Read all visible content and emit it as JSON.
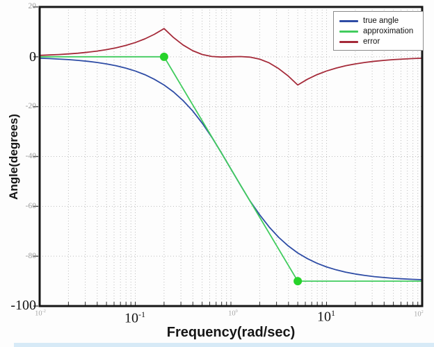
{
  "figure": {
    "background": "#fdfdfd",
    "bottom_strip_color": "#d7eaf7"
  },
  "yaxis": {
    "title": "Angle(degrees)",
    "ticks": [
      {
        "label": "20",
        "value": 20,
        "emphasis": false
      },
      {
        "label": "0",
        "value": 0,
        "emphasis": true
      },
      {
        "label": "-20",
        "value": -20,
        "emphasis": false
      },
      {
        "label": "-40",
        "value": -40,
        "emphasis": false
      },
      {
        "label": "-60",
        "value": -60,
        "emphasis": false
      },
      {
        "label": "-80",
        "value": -80,
        "emphasis": false
      },
      {
        "label": "-100",
        "value": -100,
        "emphasis": true
      }
    ]
  },
  "xaxis": {
    "title": "Frequency(rad/sec)",
    "ticks": [
      {
        "base": "10",
        "exp": "-2",
        "value": 0.01,
        "emphasis": false
      },
      {
        "base": "10",
        "exp": "-1",
        "value": 0.1,
        "emphasis": true
      },
      {
        "base": "10",
        "exp": "0",
        "value": 1,
        "emphasis": false
      },
      {
        "base": "10",
        "exp": "1",
        "value": 10,
        "emphasis": true
      },
      {
        "base": "10",
        "exp": "2",
        "value": 100,
        "emphasis": false
      }
    ]
  },
  "legend": {
    "position": "upper right",
    "items": [
      {
        "label": "true angle",
        "color": "#2e4ca5"
      },
      {
        "label": "approximation",
        "color": "#41cc5e"
      },
      {
        "label": "error",
        "color": "#a52a39"
      }
    ]
  },
  "chart_data": {
    "type": "line",
    "title": "",
    "xlabel": "Frequency(rad/sec)",
    "ylabel": "Angle(degrees)",
    "x_scale": "log",
    "xlim": [
      0.01,
      100
    ],
    "ylim": [
      -100,
      20
    ],
    "y_ticks": [
      20,
      0,
      -20,
      -40,
      -60,
      -80,
      -100
    ],
    "y_gridlines": [
      0,
      -20,
      -40,
      -60,
      -80
    ],
    "grid": "dotted gray, horizontal at 20-degree majors, vertical at all log minors and decades",
    "legend_position": "upper right",
    "series": [
      {
        "name": "true angle",
        "color": "#2e4ca5",
        "width": 1.8,
        "points": [
          [
            0.01,
            -0.57
          ],
          [
            0.0126,
            -0.72
          ],
          [
            0.0158,
            -0.91
          ],
          [
            0.02,
            -1.14
          ],
          [
            0.0251,
            -1.44
          ],
          [
            0.0316,
            -1.81
          ],
          [
            0.0398,
            -2.28
          ],
          [
            0.0501,
            -2.87
          ],
          [
            0.0631,
            -3.61
          ],
          [
            0.0794,
            -4.54
          ],
          [
            0.1,
            -5.71
          ],
          [
            0.126,
            -7.18
          ],
          [
            0.158,
            -9.01
          ],
          [
            0.2,
            -11.31
          ],
          [
            0.251,
            -14.1
          ],
          [
            0.316,
            -17.55
          ],
          [
            0.398,
            -21.71
          ],
          [
            0.501,
            -26.62
          ],
          [
            0.631,
            -32.25
          ],
          [
            0.794,
            -38.46
          ],
          [
            1,
            -45
          ],
          [
            1.26,
            -51.54
          ],
          [
            1.58,
            -57.75
          ],
          [
            2,
            -63.38
          ],
          [
            2.51,
            -68.3
          ],
          [
            3.16,
            -72.45
          ],
          [
            3.98,
            -75.9
          ],
          [
            5,
            -78.69
          ],
          [
            6.31,
            -80.99
          ],
          [
            7.94,
            -82.82
          ],
          [
            10,
            -84.29
          ],
          [
            12.6,
            -85.46
          ],
          [
            15.8,
            -86.39
          ],
          [
            20,
            -87.13
          ],
          [
            25.1,
            -87.72
          ],
          [
            31.6,
            -88.19
          ],
          [
            39.8,
            -88.56
          ],
          [
            50.1,
            -88.86
          ],
          [
            63.1,
            -89.09
          ],
          [
            79.4,
            -89.28
          ],
          [
            100,
            -89.43
          ]
        ]
      },
      {
        "name": "approximation",
        "color": "#41cc5e",
        "width": 1.8,
        "points": [
          [
            0.01,
            0
          ],
          [
            0.2,
            0
          ],
          [
            5,
            -90
          ],
          [
            100,
            -90
          ]
        ],
        "markers": [
          [
            0.2,
            0
          ],
          [
            5,
            -90
          ]
        ],
        "marker_color": "#27d32b",
        "marker_radius": 6,
        "break_frequencies": [
          0.2,
          5
        ]
      },
      {
        "name": "error",
        "color": "#a52a39",
        "width": 1.8,
        "points": [
          [
            0.01,
            0.57
          ],
          [
            0.0126,
            0.72
          ],
          [
            0.0158,
            0.91
          ],
          [
            0.02,
            1.14
          ],
          [
            0.0251,
            1.44
          ],
          [
            0.0316,
            1.81
          ],
          [
            0.0398,
            2.28
          ],
          [
            0.0501,
            2.87
          ],
          [
            0.0631,
            3.61
          ],
          [
            0.0794,
            4.54
          ],
          [
            0.1,
            5.71
          ],
          [
            0.126,
            7.18
          ],
          [
            0.158,
            9.01
          ],
          [
            0.2,
            11.31
          ],
          [
            0.251,
            7.73
          ],
          [
            0.316,
            4.74
          ],
          [
            0.398,
            2.46
          ],
          [
            0.501,
            0.94
          ],
          [
            0.631,
            0.13
          ],
          [
            0.794,
            -0.1
          ],
          [
            1,
            0
          ],
          [
            1.26,
            0.1
          ],
          [
            1.58,
            -0.12
          ],
          [
            2,
            -0.93
          ],
          [
            2.51,
            -2.45
          ],
          [
            3.16,
            -4.74
          ],
          [
            3.98,
            -7.72
          ],
          [
            5,
            -11.31
          ],
          [
            6.31,
            -9.01
          ],
          [
            7.94,
            -7.18
          ],
          [
            10,
            -5.71
          ],
          [
            12.6,
            -4.54
          ],
          [
            15.8,
            -3.61
          ],
          [
            20,
            -2.87
          ],
          [
            25.1,
            -2.28
          ],
          [
            31.6,
            -1.81
          ],
          [
            39.8,
            -1.44
          ],
          [
            50.1,
            -1.14
          ],
          [
            63.1,
            -0.91
          ],
          [
            79.4,
            -0.72
          ],
          [
            100,
            -0.57
          ]
        ]
      }
    ]
  }
}
